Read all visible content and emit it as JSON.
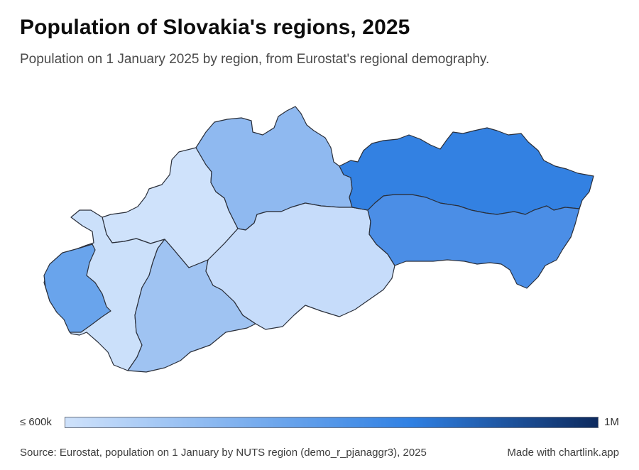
{
  "header": {
    "title": "Population of Slovakia's regions, 2025",
    "subtitle": "Population on 1 January 2025 by region, from Eurostat's regional demography."
  },
  "legend": {
    "min_label": "≤ 600k",
    "max_label": "1M",
    "min_value": 600000,
    "max_value": 1000000,
    "color_low": "#cfe2fb",
    "color_mid": "#2f80e3",
    "color_high": "#0d2a5e"
  },
  "map_data": {
    "type": "choropleth",
    "country": "Slovakia",
    "regions": [
      {
        "id": "bratislava",
        "color": "#69a4ec"
      },
      {
        "id": "trnava",
        "color": "#cbe0fa"
      },
      {
        "id": "trencin",
        "color": "#cfe2fb"
      },
      {
        "id": "nitra",
        "color": "#9fc3f2"
      },
      {
        "id": "zilina",
        "color": "#8fb9f0"
      },
      {
        "id": "banska-bystrica",
        "color": "#c6dcfa"
      },
      {
        "id": "presov",
        "color": "#3381e2"
      },
      {
        "id": "kosice",
        "color": "#4b8ee6"
      }
    ]
  },
  "footer": {
    "source": "Source: Eurostat, population on 1 January by NUTS region (demo_r_pjanaggr3), 2025",
    "credit": "Made with chartlink.app"
  }
}
